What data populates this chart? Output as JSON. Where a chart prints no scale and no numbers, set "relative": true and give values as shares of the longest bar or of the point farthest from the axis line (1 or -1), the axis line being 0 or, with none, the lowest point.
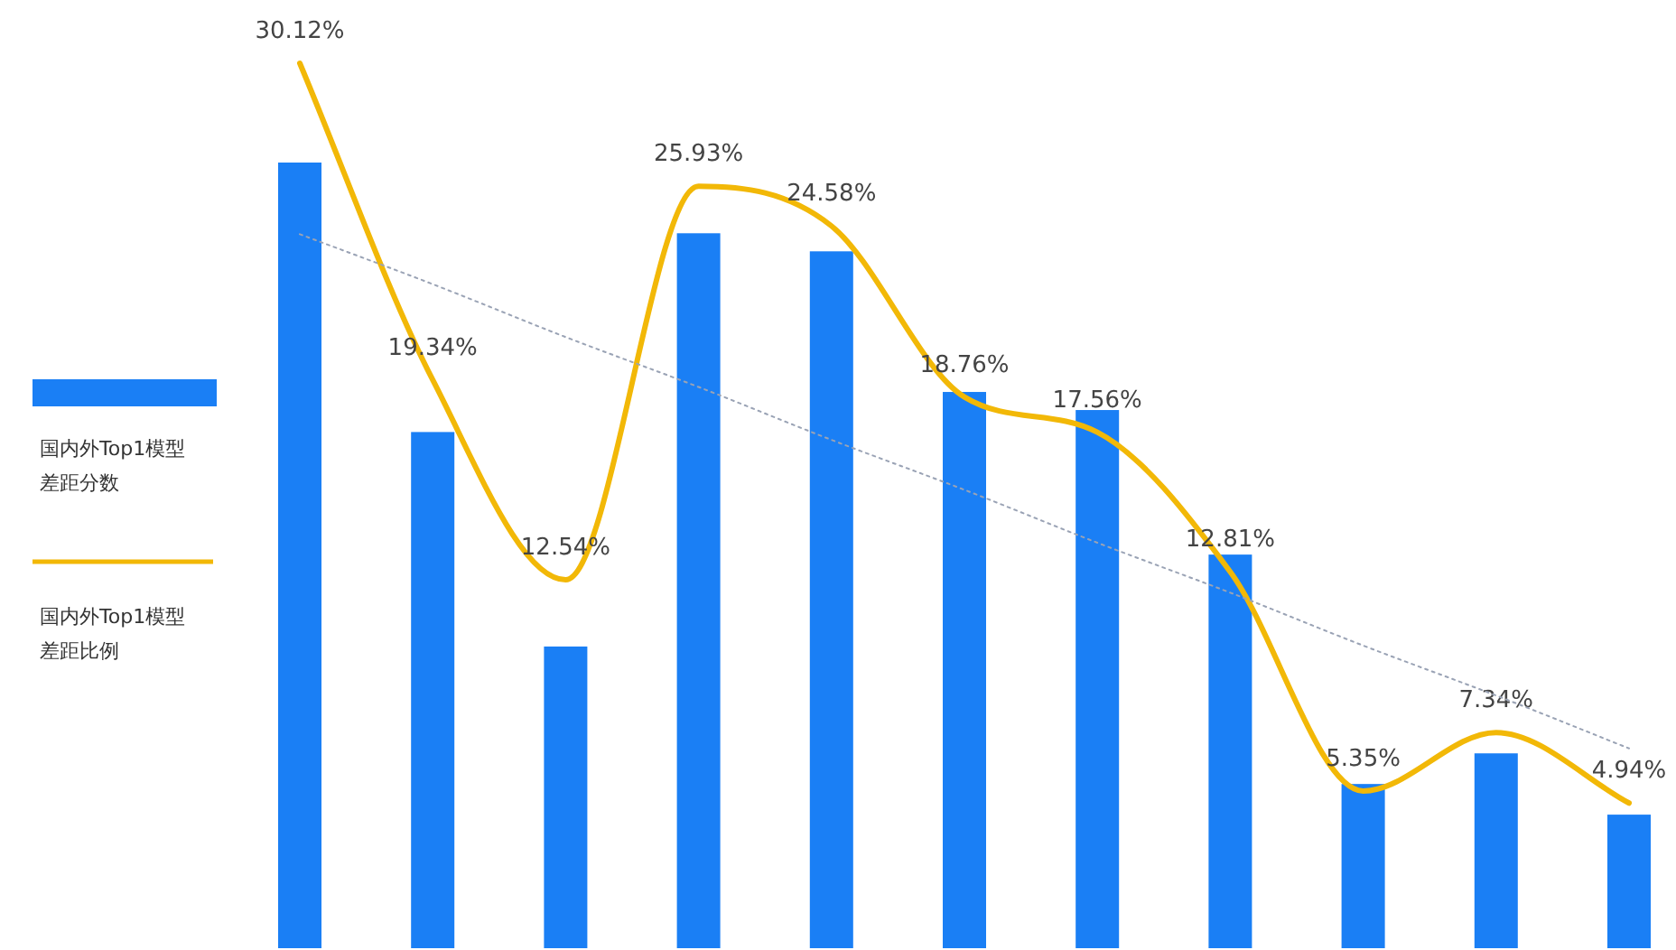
{
  "chart_data": [
    {
      "type": "bar",
      "relative": true,
      "legend": "left",
      "categories": [
        null,
        null,
        null,
        null,
        null,
        null,
        null,
        null,
        null,
        null,
        null
      ],
      "series": [
        {
          "name": "国内外Top1模型差距分数",
          "color": "#1a7ff5",
          "values": [
            1,
            0.657,
            0.384,
            0.91,
            0.887,
            0.708,
            0.685,
            0.501,
            0.209,
            0.248,
            0.17
          ]
        }
      ]
    },
    {
      "type": "line",
      "legend": "left",
      "categories": [
        null,
        null,
        null,
        null,
        null,
        null,
        null,
        null,
        null,
        null,
        null
      ],
      "series": [
        {
          "name": "国内外Top1模型差距比例",
          "color": "#f2b807",
          "values": [
            30.12,
            19.34,
            12.54,
            25.93,
            24.58,
            18.76,
            17.56,
            12.81,
            5.35,
            7.34,
            4.94
          ],
          "value_labels": [
            "30.12%",
            "19.34%",
            "12.54%",
            "25.93%",
            "24.58%",
            "18.76%",
            "17.56%",
            "12.81%",
            "5.35%",
            "7.34%",
            "4.94%"
          ]
        },
        {
          "color": "#9aa3b5",
          "line_style": "dotted",
          "values": [
            24.3,
            22.6,
            20.8,
            19.1,
            17.3,
            15.6,
            13.8,
            12.1,
            10.3,
            8.6,
            6.8
          ]
        }
      ]
    }
  ]
}
